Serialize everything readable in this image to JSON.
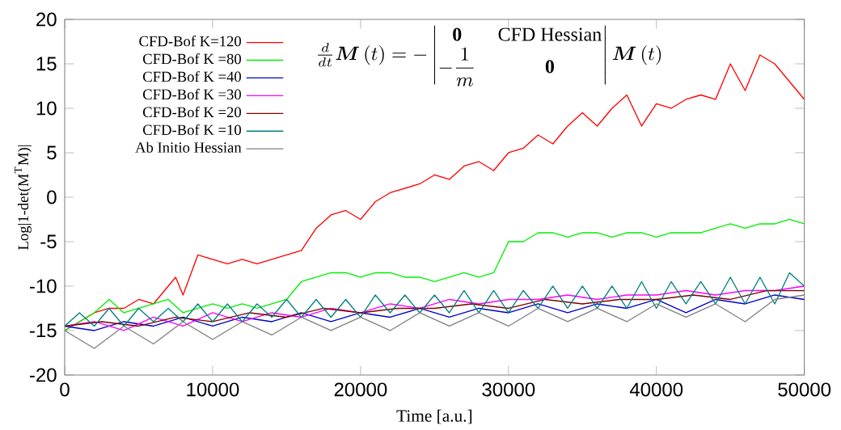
{
  "chart_data": {
    "type": "line",
    "xlabel": "Time  [a.u.]",
    "ylabel": "Log|1-det(M$^{T}$M)|",
    "xlim": [
      0,
      50000
    ],
    "ylim": [
      -20,
      20
    ],
    "xticks": [
      0,
      10000,
      20000,
      30000,
      40000,
      50000
    ],
    "yticks": [
      -20,
      -15,
      -10,
      -5,
      0,
      5,
      10,
      15,
      20
    ],
    "grid": false,
    "legend": "top left",
    "marker": "none",
    "line_style": "solid",
    "annotations": [
      "\\frac{d}{dt}\\boldsymbol{M}\\left(t\\right)=-\\left|\\begin{matrix}\\mathbf{0} & \\mathrm{CFD\\ Hessian}\\\\ -\\dfrac{1}{m} & \\mathbf{0}\\end{matrix}\\right|\\boldsymbol{M}\\left(t\\right)"
    ],
    "series": [
      {
        "name": "CFD-Bof  K=120",
        "color": "#ff0000",
        "x": [
          0,
          1000,
          2000,
          3000,
          4000,
          5000,
          6000,
          7000,
          7500,
          8000,
          9000,
          10000,
          11000,
          12000,
          13000,
          14000,
          15000,
          16000,
          17000,
          18000,
          19000,
          20000,
          21000,
          22000,
          23000,
          24000,
          25000,
          26000,
          27000,
          28000,
          29000,
          30000,
          31000,
          32000,
          33000,
          34000,
          35000,
          36000,
          37000,
          38000,
          39000,
          40000,
          41000,
          42000,
          43000,
          44000,
          45000,
          46000,
          47000,
          48000,
          49000,
          50000
        ],
        "values": [
          -15,
          -14,
          -13,
          -12.5,
          -12.5,
          -11.5,
          -12,
          -10,
          -9,
          -11,
          -6.5,
          -7,
          -7.5,
          -7,
          -7.5,
          -7,
          -6.5,
          -6,
          -3.5,
          -2,
          -1.5,
          -2.5,
          -0.5,
          0.5,
          1,
          1.5,
          2.5,
          2,
          3.5,
          4,
          3,
          5,
          5.5,
          7,
          6,
          8,
          9.5,
          8,
          10,
          11.5,
          8,
          10.5,
          10,
          11,
          11.5,
          11,
          15,
          12,
          16,
          15,
          13,
          11
        ]
      },
      {
        "name": "CFD-Bof   K =80",
        "color": "#00ee00",
        "x": [
          0,
          1000,
          2000,
          3000,
          4000,
          5000,
          6000,
          7000,
          8000,
          9000,
          10000,
          11000,
          12000,
          13000,
          14000,
          15000,
          16000,
          17000,
          18000,
          19000,
          20000,
          21000,
          22000,
          23000,
          24000,
          25000,
          26000,
          27000,
          28000,
          29000,
          30000,
          31000,
          32000,
          33000,
          34000,
          35000,
          36000,
          37000,
          38000,
          39000,
          40000,
          41000,
          42000,
          43000,
          44000,
          45000,
          46000,
          47000,
          48000,
          49000,
          50000
        ],
        "values": [
          -15,
          -14,
          -13,
          -11.5,
          -13,
          -12.5,
          -12,
          -11.5,
          -13,
          -12.5,
          -12,
          -12.5,
          -12,
          -12.5,
          -12,
          -11.5,
          -9.5,
          -9,
          -8.5,
          -8.5,
          -9,
          -8.5,
          -8.5,
          -9,
          -9,
          -9.5,
          -9,
          -8.5,
          -9,
          -8.5,
          -5,
          -5,
          -4,
          -4,
          -4.5,
          -4,
          -4,
          -4.5,
          -4,
          -4,
          -4.5,
          -4,
          -4,
          -4,
          -3.5,
          -3,
          -3.5,
          -3,
          -3,
          -2.5,
          -3
        ]
      },
      {
        "name": "CFD-Bof   K =40",
        "color": "#0000cc",
        "x": [
          0,
          2000,
          4000,
          6000,
          8000,
          10000,
          12000,
          14000,
          16000,
          18000,
          20000,
          22000,
          24000,
          26000,
          28000,
          30000,
          32000,
          34000,
          36000,
          38000,
          40000,
          42000,
          44000,
          46000,
          48000,
          50000
        ],
        "values": [
          -14.5,
          -15,
          -14,
          -14.5,
          -13.5,
          -14.5,
          -13.5,
          -14,
          -13,
          -14,
          -13,
          -13.5,
          -12.5,
          -13.5,
          -12.5,
          -13,
          -12,
          -13,
          -12,
          -12.5,
          -11.5,
          -13,
          -11.5,
          -12,
          -11,
          -11.5
        ]
      },
      {
        "name": "CFD-Bof   K =30",
        "color": "#ff00ff",
        "x": [
          0,
          2000,
          4000,
          6000,
          8000,
          10000,
          12000,
          14000,
          16000,
          18000,
          20000,
          22000,
          24000,
          26000,
          28000,
          30000,
          32000,
          34000,
          36000,
          38000,
          40000,
          42000,
          44000,
          46000,
          48000,
          50000
        ],
        "values": [
          -14.5,
          -14,
          -15,
          -13.5,
          -14.5,
          -13,
          -14,
          -13,
          -13.5,
          -12.5,
          -13,
          -12,
          -12.5,
          -11.5,
          -12,
          -11.5,
          -11.5,
          -11,
          -11.5,
          -11,
          -11,
          -10.5,
          -11,
          -10.5,
          -10.5,
          -10
        ]
      },
      {
        "name": "CFD-Bof   K =20",
        "color": "#800000",
        "x": [
          0,
          2500,
          5000,
          7500,
          10000,
          12500,
          15000,
          17500,
          20000,
          22500,
          25000,
          27500,
          30000,
          32500,
          35000,
          37500,
          40000,
          42500,
          45000,
          47500,
          50000
        ],
        "values": [
          -14.5,
          -14,
          -14.5,
          -13.5,
          -14,
          -13,
          -13.5,
          -12.5,
          -13,
          -12.5,
          -12.5,
          -12,
          -12.5,
          -11.5,
          -12,
          -11.5,
          -11.5,
          -11,
          -11.5,
          -10.5,
          -10.5
        ]
      },
      {
        "name": "CFD-Bof   K =10",
        "color": "#008080",
        "x": [
          0,
          1000,
          2000,
          3000,
          4000,
          5000,
          6000,
          7000,
          8000,
          9000,
          10000,
          11000,
          12000,
          13000,
          14000,
          15000,
          16000,
          17000,
          18000,
          19000,
          20000,
          21000,
          22000,
          23000,
          24000,
          25000,
          26000,
          27000,
          28000,
          29000,
          30000,
          31000,
          32000,
          33000,
          34000,
          35000,
          36000,
          37000,
          38000,
          39000,
          40000,
          41000,
          42000,
          43000,
          44000,
          45000,
          46000,
          47000,
          48000,
          49000,
          50000
        ],
        "values": [
          -14.5,
          -13,
          -14.5,
          -12.5,
          -14.5,
          -12.5,
          -14,
          -12.5,
          -14,
          -12,
          -14,
          -12,
          -14,
          -12,
          -13.5,
          -11.5,
          -13.5,
          -11.5,
          -13.5,
          -11.5,
          -13.5,
          -11,
          -13,
          -11,
          -13,
          -11,
          -13,
          -10.5,
          -13,
          -10.5,
          -13,
          -10.5,
          -12.5,
          -10,
          -12.5,
          -10,
          -12.5,
          -10,
          -12.5,
          -9.5,
          -12.5,
          -9.5,
          -12,
          -9.5,
          -12,
          -9,
          -12,
          -9,
          -12,
          -8.5,
          -10
        ]
      },
      {
        "name": "Ab Initio Hessian",
        "color": "#808080",
        "x": [
          0,
          2000,
          4000,
          6000,
          8000,
          10000,
          12000,
          14000,
          16000,
          18000,
          20000,
          22000,
          24000,
          26000,
          28000,
          30000,
          32000,
          34000,
          36000,
          38000,
          40000,
          42000,
          44000,
          46000,
          48000,
          50000
        ],
        "values": [
          -15,
          -17,
          -14.5,
          -16.5,
          -14,
          -16,
          -14,
          -15.5,
          -13.5,
          -15,
          -13.5,
          -15,
          -13,
          -14.5,
          -13,
          -14.5,
          -12.5,
          -14,
          -12.5,
          -14,
          -12,
          -13.5,
          -12,
          -14,
          -11.5,
          -11
        ]
      }
    ]
  }
}
